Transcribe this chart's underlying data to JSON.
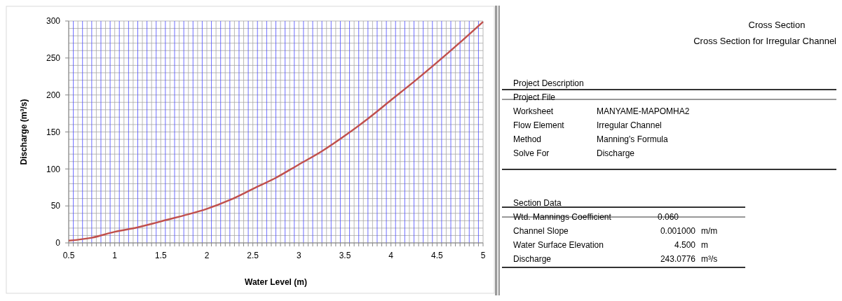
{
  "chart_data": [
    {
      "type": "line",
      "xlabel": "Water Level (m)",
      "ylabel": "Discharge (m³/s)",
      "x": [
        0.5,
        0.75,
        1,
        1.25,
        1.5,
        1.75,
        2,
        2.25,
        2.5,
        2.75,
        3,
        3.25,
        3.5,
        3.75,
        4,
        4.25,
        4.5,
        4.75,
        5
      ],
      "series": [
        {
          "color": "#c0504d",
          "values": [
            3,
            7,
            15,
            21,
            29,
            37,
            46,
            58,
            73,
            88,
            106,
            124,
            145,
            168,
            193,
            218,
            244,
            271,
            299
          ]
        }
      ],
      "xlim": [
        0.5,
        5
      ],
      "xticks": [
        0.5,
        {
          "value": 0.55,
          "label": null
        },
        {
          "value": 0.6,
          "label": null
        },
        {
          "value": 0.65,
          "label": null
        },
        {
          "value": 0.7,
          "label": null
        },
        {
          "value": 0.75,
          "label": null
        },
        {
          "value": 0.8,
          "label": null
        },
        {
          "value": 0.85,
          "label": null
        },
        {
          "value": 0.9,
          "label": null
        },
        {
          "value": 0.95,
          "label": null
        },
        1,
        {
          "value": 1.05,
          "label": null
        },
        {
          "value": 1.1,
          "label": null
        },
        {
          "value": 1.15,
          "label": null
        },
        {
          "value": 1.2,
          "label": null
        },
        {
          "value": 1.25,
          "label": null
        },
        {
          "value": 1.3,
          "label": null
        },
        {
          "value": 1.35,
          "label": null
        },
        {
          "value": 1.4,
          "label": null
        },
        {
          "value": 1.45,
          "label": null
        },
        1.5,
        {
          "value": 1.55,
          "label": null
        },
        {
          "value": 1.6,
          "label": null
        },
        {
          "value": 1.65,
          "label": null
        },
        {
          "value": 1.7,
          "label": null
        },
        {
          "value": 1.75,
          "label": null
        },
        {
          "value": 1.8,
          "label": null
        },
        {
          "value": 1.85,
          "label": null
        },
        {
          "value": 1.9,
          "label": null
        },
        {
          "value": 1.95,
          "label": null
        },
        2,
        {
          "value": 2.05,
          "label": null
        },
        {
          "value": 2.1,
          "label": null
        },
        {
          "value": 2.15,
          "label": null
        },
        {
          "value": 2.2,
          "label": null
        },
        {
          "value": 2.25,
          "label": null
        },
        {
          "value": 2.3,
          "label": null
        },
        {
          "value": 2.35,
          "label": null
        },
        {
          "value": 2.4,
          "label": null
        },
        {
          "value": 2.45,
          "label": null
        },
        2.5,
        {
          "value": 2.55,
          "label": null
        },
        {
          "value": 2.6,
          "label": null
        },
        {
          "value": 2.65,
          "label": null
        },
        {
          "value": 2.7,
          "label": null
        },
        {
          "value": 2.75,
          "label": null
        },
        {
          "value": 2.8,
          "label": null
        },
        {
          "value": 2.85,
          "label": null
        },
        {
          "value": 2.9,
          "label": null
        },
        {
          "value": 2.95,
          "label": null
        },
        3,
        {
          "value": 3.05,
          "label": null
        },
        {
          "value": 3.1,
          "label": null
        },
        {
          "value": 3.15,
          "label": null
        },
        {
          "value": 3.2,
          "label": null
        },
        {
          "value": 3.25,
          "label": null
        },
        {
          "value": 3.3,
          "label": null
        },
        {
          "value": 3.35,
          "label": null
        },
        {
          "value": 3.4,
          "label": null
        },
        {
          "value": 3.45,
          "label": null
        },
        3.5,
        {
          "value": 3.55,
          "label": null
        },
        {
          "value": 3.6,
          "label": null
        },
        {
          "value": 3.65,
          "label": null
        },
        {
          "value": 3.7,
          "label": null
        },
        {
          "value": 3.75,
          "label": null
        },
        {
          "value": 3.8,
          "label": null
        },
        {
          "value": 3.85,
          "label": null
        },
        {
          "value": 3.9,
          "label": null
        },
        {
          "value": 3.95,
          "label": null
        },
        4,
        {
          "value": 4.05,
          "label": null
        },
        {
          "value": 4.1,
          "label": null
        },
        {
          "value": 4.15,
          "label": null
        },
        {
          "value": 4.2,
          "label": null
        },
        {
          "value": 4.25,
          "label": null
        },
        {
          "value": 4.3,
          "label": null
        },
        {
          "value": 4.35,
          "label": null
        },
        {
          "value": 4.4,
          "label": null
        },
        {
          "value": 4.45,
          "label": null
        },
        4.5,
        {
          "value": 4.55,
          "label": null
        },
        {
          "value": 4.6,
          "label": null
        },
        {
          "value": 4.65,
          "label": null
        },
        {
          "value": 4.7,
          "label": null
        },
        {
          "value": 4.75,
          "label": null
        },
        {
          "value": 4.8,
          "label": null
        },
        {
          "value": 4.85,
          "label": null
        },
        {
          "value": 4.9,
          "label": null
        },
        {
          "value": 4.95,
          "label": null
        },
        5
      ],
      "ylim": [
        0,
        300
      ],
      "yticks": [
        0,
        50,
        100,
        150,
        200,
        250,
        300
      ],
      "grid": true,
      "marker": "none",
      "line_style": "solid"
    },
    {
      "type": "other",
      "title": "Cross Section",
      "subtitle": "Cross Section for Irregular Channel",
      "annotations": [
        "Project Description",
        "Project File",
        "Worksheet",
        "MANYAME-MAPOMHA2",
        "Flow Element",
        "Irregular Channel",
        "Method",
        "Manning's Formula",
        "Solve For",
        "Discharge",
        "Section Data",
        "Wtd. Mannings Coefficient",
        "0.060",
        "Channel Slope",
        "0.001000",
        "m/m",
        "Water Surface Elevation",
        "4.500",
        "m",
        "Discharge",
        "243.0776",
        "m³/s"
      ]
    }
  ]
}
